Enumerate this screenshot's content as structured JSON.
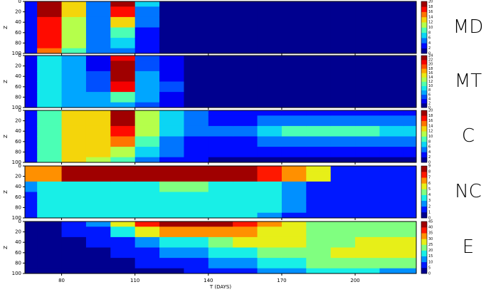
{
  "colormap": [
    "#00008f",
    "#0000ff",
    "#0060ff",
    "#00c0ff",
    "#20ffdf",
    "#80ff80",
    "#dfff20",
    "#ffc000",
    "#ff6000",
    "#ff0000",
    "#a00000"
  ],
  "chart_data": [
    {
      "type": "heatmap",
      "label": "MD",
      "ylabel": "Z",
      "x": [
        65,
        75,
        85,
        95,
        105,
        115,
        125,
        135,
        145,
        155,
        165,
        175,
        185,
        195,
        205,
        215,
        225
      ],
      "y": [
        0,
        20,
        40,
        60,
        80,
        100
      ],
      "z": [
        [
          3,
          3,
          3,
          3,
          3,
          3
        ],
        [
          18,
          18,
          17,
          16,
          16,
          15
        ],
        [
          12,
          12,
          11,
          10,
          10,
          9
        ],
        [
          5,
          5,
          4,
          4,
          4,
          4
        ],
        [
          18,
          17,
          12,
          8,
          6,
          5
        ],
        [
          6,
          5,
          4,
          3,
          2,
          2
        ],
        [
          1,
          1,
          1,
          1,
          1,
          1
        ],
        [
          1,
          1,
          1,
          1,
          1,
          1
        ],
        [
          1,
          1,
          1,
          1,
          1,
          1
        ],
        [
          1,
          1,
          1,
          1,
          1,
          1
        ],
        [
          1,
          1,
          1,
          1,
          1,
          1
        ],
        [
          1,
          1,
          1,
          1,
          1,
          1
        ],
        [
          1,
          1,
          1,
          1,
          1,
          1
        ],
        [
          1,
          1,
          1,
          1,
          1,
          1
        ],
        [
          1,
          1,
          1,
          1,
          1,
          1
        ],
        [
          1,
          1,
          1,
          1,
          1,
          1
        ],
        [
          1,
          1,
          1,
          1,
          1,
          1
        ]
      ],
      "xlim": [
        65,
        225
      ],
      "xticks": [
        80,
        110,
        140,
        170,
        200
      ],
      "ylim": [
        0,
        100
      ],
      "yticks": [
        0,
        20,
        40,
        60,
        80,
        100
      ],
      "levels": [
        0,
        2,
        4,
        6,
        8,
        10,
        12,
        14,
        16,
        18,
        20
      ]
    },
    {
      "type": "heatmap",
      "label": "MT",
      "ylabel": "Z",
      "x": [
        65,
        75,
        85,
        95,
        105,
        115,
        125,
        135,
        145,
        155,
        165,
        175,
        185,
        195,
        205,
        215,
        225
      ],
      "y": [
        0,
        20,
        40,
        60,
        80,
        100
      ],
      "z": [
        [
          2,
          2,
          2,
          2,
          2,
          2
        ],
        [
          8,
          8,
          8,
          8,
          8,
          8
        ],
        [
          6,
          6,
          6,
          6,
          6,
          6
        ],
        [
          3,
          3,
          4,
          5,
          6,
          6
        ],
        [
          20,
          22,
          22,
          20,
          10,
          6
        ],
        [
          4,
          5,
          6,
          7,
          6,
          4
        ],
        [
          2,
          2,
          3,
          4,
          3,
          2
        ],
        [
          1,
          1,
          1,
          1,
          1,
          1
        ],
        [
          1,
          1,
          1,
          1,
          1,
          1
        ],
        [
          1,
          1,
          1,
          1,
          1,
          1
        ],
        [
          1,
          1,
          1,
          1,
          1,
          1
        ],
        [
          1,
          1,
          1,
          1,
          1,
          1
        ],
        [
          1,
          1,
          1,
          1,
          1,
          1
        ],
        [
          1,
          1,
          1,
          1,
          1,
          1
        ],
        [
          1,
          1,
          1,
          1,
          1,
          1
        ],
        [
          1,
          1,
          1,
          1,
          1,
          1
        ],
        [
          1,
          1,
          1,
          1,
          1,
          1
        ]
      ],
      "xlim": [
        65,
        225
      ],
      "xticks": [
        80,
        110,
        140,
        170,
        200
      ],
      "ylim": [
        0,
        100
      ],
      "yticks": [
        0,
        20,
        40,
        60,
        80,
        100
      ],
      "levels": [
        0,
        2,
        4,
        6,
        8,
        10,
        12,
        14,
        16,
        18,
        20,
        22,
        24
      ]
    },
    {
      "type": "heatmap",
      "label": "C",
      "ylabel": "Z",
      "x": [
        65,
        75,
        85,
        95,
        105,
        115,
        125,
        135,
        145,
        155,
        165,
        175,
        185,
        195,
        205,
        215,
        225
      ],
      "y": [
        0,
        20,
        40,
        60,
        80,
        100
      ],
      "z": [
        [
          2,
          2,
          2,
          2,
          2,
          2
        ],
        [
          8,
          8,
          8,
          8,
          8,
          8
        ],
        [
          12,
          12,
          12,
          12,
          12,
          12
        ],
        [
          13,
          13,
          13,
          13,
          12,
          10
        ],
        [
          18,
          18,
          17,
          14,
          10,
          8
        ],
        [
          10,
          10,
          10,
          9,
          7,
          5
        ],
        [
          6,
          6,
          6,
          5,
          4,
          3
        ],
        [
          4,
          4,
          4,
          3,
          2,
          2
        ],
        [
          3,
          3,
          4,
          3,
          2,
          1
        ],
        [
          2,
          3,
          4,
          3,
          2,
          1
        ],
        [
          2,
          4,
          6,
          4,
          2,
          1
        ],
        [
          2,
          5,
          8,
          5,
          2,
          1
        ],
        [
          2,
          5,
          9,
          5,
          2,
          1
        ],
        [
          2,
          5,
          8,
          5,
          2,
          1
        ],
        [
          2,
          5,
          8,
          5,
          2,
          1
        ],
        [
          2,
          4,
          7,
          4,
          2,
          1
        ],
        [
          2,
          4,
          6,
          4,
          2,
          1
        ]
      ],
      "xlim": [
        65,
        225
      ],
      "xticks": [
        80,
        110,
        140,
        170,
        200
      ],
      "ylim": [
        0,
        100
      ],
      "yticks": [
        0,
        20,
        40,
        60,
        80,
        100
      ],
      "levels": [
        0,
        2,
        4,
        6,
        8,
        10,
        12,
        14,
        16,
        18,
        20
      ]
    },
    {
      "type": "heatmap",
      "label": "NC",
      "ylabel": "Z",
      "x": [
        65,
        75,
        85,
        95,
        105,
        115,
        125,
        135,
        145,
        155,
        165,
        175,
        185,
        195,
        205,
        215,
        225
      ],
      "y": [
        0,
        20,
        40,
        60,
        80,
        100
      ],
      "z": [
        [
          6,
          6,
          2,
          1,
          1,
          1
        ],
        [
          6,
          6,
          3,
          3,
          3,
          3
        ],
        [
          8,
          8,
          3,
          3,
          3,
          3
        ],
        [
          8,
          8,
          3,
          3,
          3,
          3
        ],
        [
          8,
          8,
          3,
          3,
          3,
          3
        ],
        [
          9,
          9,
          3,
          3,
          3,
          3
        ],
        [
          9,
          9,
          4,
          3,
          3,
          3
        ],
        [
          8,
          8,
          4,
          3,
          3,
          3
        ],
        [
          8,
          8,
          3,
          3,
          3,
          3
        ],
        [
          8,
          8,
          3,
          3,
          3,
          3
        ],
        [
          7,
          7,
          3,
          3,
          3,
          2
        ],
        [
          6,
          6,
          2,
          2,
          2,
          1
        ],
        [
          5,
          5,
          1,
          1,
          1,
          1
        ],
        [
          1,
          1,
          1,
          1,
          1,
          1
        ],
        [
          1,
          1,
          1,
          1,
          1,
          1
        ],
        [
          1,
          1,
          1,
          1,
          1,
          1
        ],
        [
          1,
          1,
          1,
          1,
          1,
          1
        ]
      ],
      "xlim": [
        65,
        225
      ],
      "xticks": [
        80,
        110,
        140,
        170,
        200
      ],
      "ylim": [
        0,
        100
      ],
      "yticks": [
        0,
        20,
        40,
        60,
        80,
        100
      ],
      "levels": [
        0,
        1,
        2,
        3,
        4,
        5,
        6,
        7,
        8,
        9
      ]
    },
    {
      "type": "heatmap",
      "label": "E",
      "ylabel": "Z",
      "xlabel": "T (DAYS)",
      "x": [
        65,
        75,
        85,
        95,
        105,
        115,
        125,
        135,
        145,
        155,
        165,
        175,
        185,
        195,
        205,
        215,
        225
      ],
      "y": [
        0,
        20,
        40,
        60,
        80,
        100
      ],
      "z": [
        [
          3,
          3,
          3,
          3,
          3,
          3
        ],
        [
          3,
          3,
          3,
          3,
          3,
          3
        ],
        [
          5,
          5,
          3,
          3,
          3,
          3
        ],
        [
          10,
          8,
          5,
          3,
          3,
          3
        ],
        [
          25,
          15,
          8,
          5,
          4,
          3
        ],
        [
          35,
          25,
          12,
          8,
          5,
          4
        ],
        [
          40,
          30,
          15,
          10,
          6,
          4
        ],
        [
          42,
          30,
          18,
          12,
          8,
          5
        ],
        [
          40,
          30,
          20,
          15,
          10,
          6
        ],
        [
          35,
          30,
          25,
          18,
          12,
          8
        ],
        [
          30,
          28,
          25,
          20,
          15,
          10
        ],
        [
          25,
          25,
          25,
          22,
          18,
          12
        ],
        [
          22,
          22,
          24,
          24,
          20,
          15
        ],
        [
          22,
          22,
          24,
          26,
          22,
          15
        ],
        [
          20,
          22,
          25,
          28,
          22,
          15
        ],
        [
          20,
          22,
          25,
          28,
          22,
          14
        ],
        [
          20,
          22,
          25,
          28,
          22,
          14
        ]
      ],
      "xlim": [
        65,
        225
      ],
      "xticks": [
        80,
        110,
        140,
        170,
        200
      ],
      "ylim": [
        0,
        100
      ],
      "yticks": [
        0,
        20,
        40,
        60,
        80,
        100
      ],
      "levels": [
        0,
        5,
        10,
        15,
        20,
        25,
        30,
        35,
        40,
        45
      ]
    }
  ]
}
